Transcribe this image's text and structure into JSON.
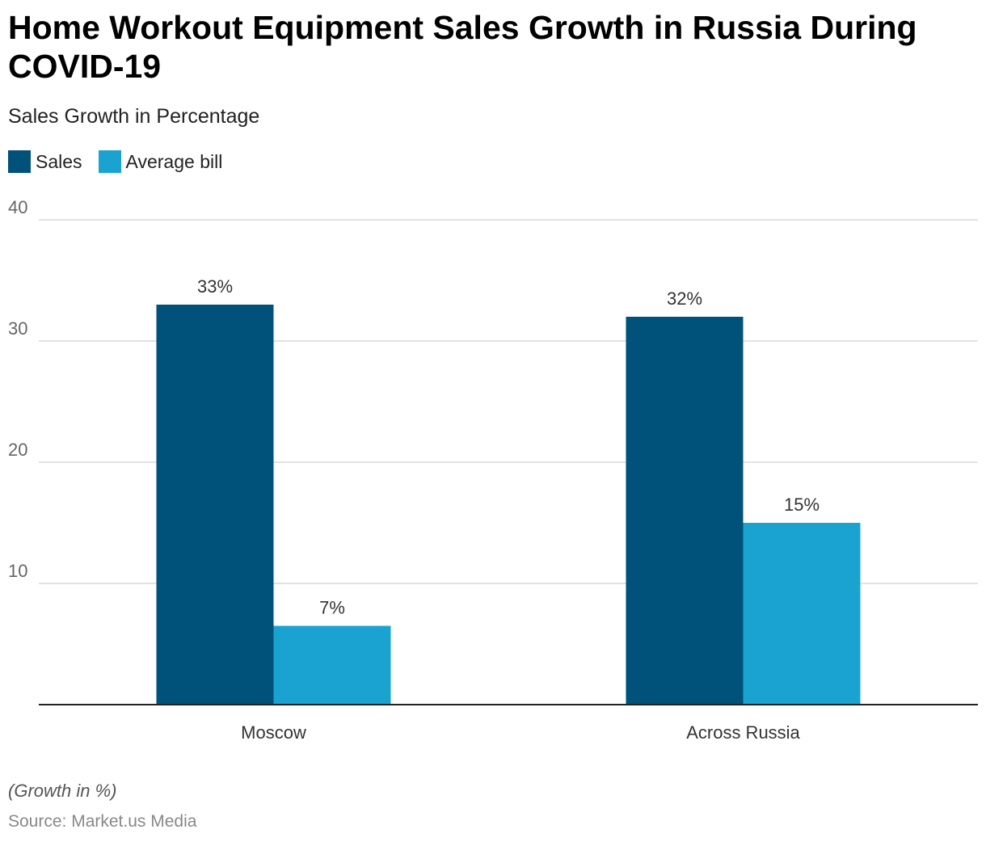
{
  "title": "Home Workout Equipment Sales Growth in Russia During COVID-19",
  "subtitle": "Sales Growth in Percentage",
  "note": "(Growth in %)",
  "source": "Source: Market.us Media",
  "chart_data": {
    "type": "bar",
    "title": "Home Workout Equipment Sales Growth in Russia During COVID-19",
    "subtitle": "Sales Growth in Percentage",
    "categories": [
      "Moscow",
      "Across Russia"
    ],
    "series": [
      {
        "name": "Sales",
        "color": "#00527a",
        "values": [
          33,
          32
        ],
        "labels": [
          "33%",
          "32%"
        ]
      },
      {
        "name": "Average bill",
        "color": "#1aa3d0",
        "values": [
          6.5,
          15
        ],
        "labels": [
          "7%",
          "15%"
        ]
      }
    ],
    "ylim": [
      0,
      40
    ],
    "yticks": [
      10,
      20,
      30,
      40
    ],
    "grid": true,
    "legend": "top-left"
  }
}
